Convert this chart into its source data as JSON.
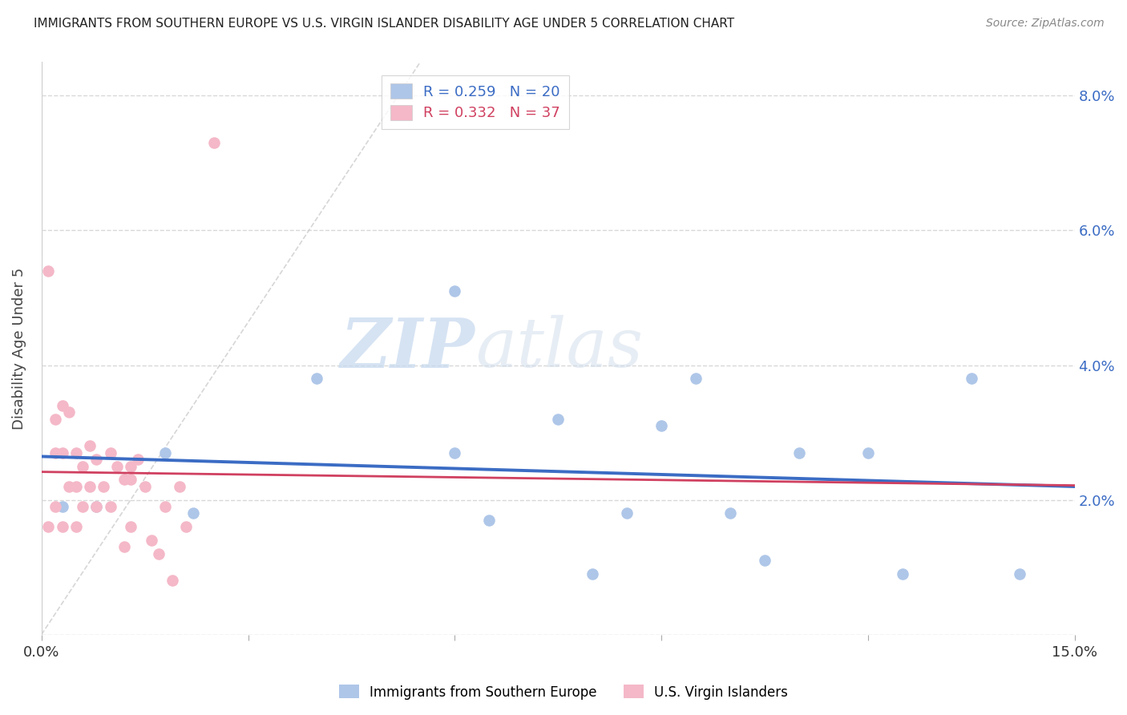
{
  "title": "IMMIGRANTS FROM SOUTHERN EUROPE VS U.S. VIRGIN ISLANDER DISABILITY AGE UNDER 5 CORRELATION CHART",
  "source": "Source: ZipAtlas.com",
  "ylabel": "Disability Age Under 5",
  "xlim": [
    0.0,
    0.15
  ],
  "ylim": [
    0.0,
    0.085
  ],
  "xticks": [
    0.0,
    0.03,
    0.06,
    0.09,
    0.12,
    0.15
  ],
  "xtick_labels": [
    "0.0%",
    "",
    "",
    "",
    "",
    "15.0%"
  ],
  "yticks": [
    0.0,
    0.02,
    0.04,
    0.06,
    0.08
  ],
  "ytick_labels_right": [
    "",
    "2.0%",
    "4.0%",
    "6.0%",
    "8.0%"
  ],
  "blue_R": 0.259,
  "blue_N": 20,
  "pink_R": 0.332,
  "pink_N": 37,
  "blue_color": "#aec6e8",
  "pink_color": "#f4b8c8",
  "blue_line_color": "#3b6cc4",
  "pink_line_color": "#d04060",
  "blue_scatter_x": [
    0.003,
    0.008,
    0.018,
    0.022,
    0.04,
    0.06,
    0.06,
    0.065,
    0.075,
    0.08,
    0.085,
    0.09,
    0.095,
    0.1,
    0.105,
    0.11,
    0.12,
    0.125,
    0.135,
    0.142
  ],
  "blue_scatter_y": [
    0.019,
    0.019,
    0.027,
    0.018,
    0.038,
    0.051,
    0.027,
    0.017,
    0.032,
    0.009,
    0.018,
    0.031,
    0.038,
    0.018,
    0.011,
    0.027,
    0.027,
    0.009,
    0.038,
    0.009
  ],
  "pink_scatter_x": [
    0.001,
    0.001,
    0.002,
    0.002,
    0.002,
    0.003,
    0.003,
    0.003,
    0.004,
    0.004,
    0.005,
    0.005,
    0.005,
    0.006,
    0.006,
    0.007,
    0.007,
    0.008,
    0.008,
    0.009,
    0.01,
    0.01,
    0.011,
    0.012,
    0.012,
    0.013,
    0.013,
    0.013,
    0.014,
    0.015,
    0.016,
    0.017,
    0.018,
    0.019,
    0.02,
    0.021,
    0.025
  ],
  "pink_scatter_y": [
    0.054,
    0.016,
    0.032,
    0.027,
    0.019,
    0.034,
    0.027,
    0.016,
    0.033,
    0.022,
    0.027,
    0.022,
    0.016,
    0.025,
    0.019,
    0.028,
    0.022,
    0.026,
    0.019,
    0.022,
    0.027,
    0.019,
    0.025,
    0.013,
    0.023,
    0.025,
    0.023,
    0.016,
    0.026,
    0.022,
    0.014,
    0.012,
    0.019,
    0.008,
    0.022,
    0.016,
    0.073
  ],
  "legend_labels": [
    "Immigrants from Southern Europe",
    "U.S. Virgin Islanders"
  ],
  "watermark_part1": "ZIP",
  "watermark_part2": "atlas",
  "background_color": "#ffffff",
  "grid_color": "#d8d8d8",
  "diag_line_color": "#cccccc"
}
